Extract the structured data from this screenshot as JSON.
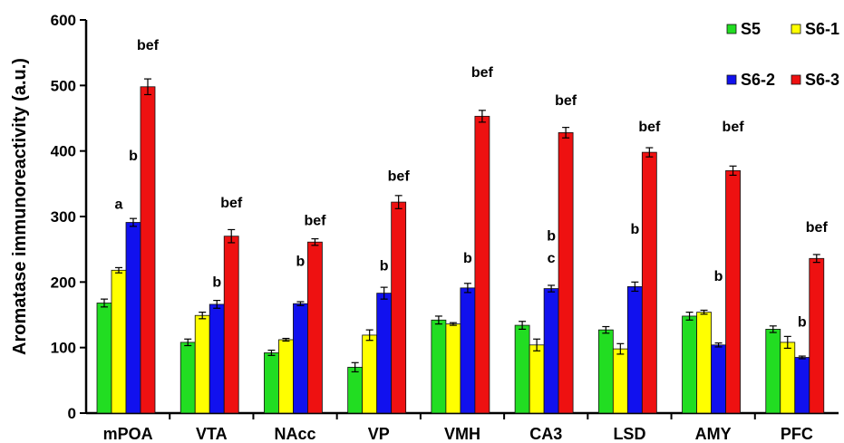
{
  "chart_data": {
    "type": "bar",
    "title": "",
    "xlabel": "",
    "ylabel": "Aromatase immunoreactivity (a.u.)",
    "ylim": [
      0,
      600
    ],
    "yticks": [
      0,
      100,
      200,
      300,
      400,
      500,
      600
    ],
    "grid": false,
    "legend_position": "top-right",
    "categories": [
      "mPOA",
      "VTA",
      "NAcc",
      "VP",
      "VMH",
      "CA3",
      "LSD",
      "AMY",
      "PFC"
    ],
    "series": [
      {
        "name": "S5",
        "color": "#22dd22",
        "values": [
          168,
          108,
          92,
          70,
          142,
          134,
          127,
          148,
          128
        ],
        "errors": [
          6,
          5,
          4,
          7,
          6,
          6,
          5,
          6,
          5
        ]
      },
      {
        "name": "S6-1",
        "color": "#ffff00",
        "values": [
          218,
          149,
          112,
          119,
          136,
          104,
          98,
          154,
          108
        ],
        "errors": [
          4,
          5,
          2,
          8,
          2,
          9,
          8,
          3,
          9
        ]
      },
      {
        "name": "S6-2",
        "color": "#1111ee",
        "values": [
          291,
          166,
          167,
          183,
          191,
          190,
          193,
          104,
          85
        ],
        "errors": [
          6,
          6,
          3,
          9,
          7,
          5,
          7,
          3,
          2
        ]
      },
      {
        "name": "S6-3",
        "color": "#ee1111",
        "values": [
          498,
          270,
          261,
          322,
          453,
          428,
          398,
          370,
          236
        ],
        "errors": [
          12,
          10,
          5,
          10,
          9,
          8,
          7,
          7,
          6
        ]
      }
    ],
    "annotations": [
      {
        "text": "a",
        "category": "mPOA",
        "series": "S6-1",
        "y": 320
      },
      {
        "text": "b",
        "category": "mPOA",
        "series": "S6-2",
        "y": 394
      },
      {
        "text": "bef",
        "category": "mPOA",
        "series": "S6-3",
        "y": 563
      },
      {
        "text": "b",
        "category": "VTA",
        "series": "S6-2",
        "y": 201
      },
      {
        "text": "bef",
        "category": "VTA",
        "series": "S6-3",
        "y": 322
      },
      {
        "text": "b",
        "category": "NAcc",
        "series": "S6-2",
        "y": 233
      },
      {
        "text": "bef",
        "category": "NAcc",
        "series": "S6-3",
        "y": 295
      },
      {
        "text": "b",
        "category": "VP",
        "series": "S6-2",
        "y": 226
      },
      {
        "text": "bef",
        "category": "VP",
        "series": "S6-3",
        "y": 363
      },
      {
        "text": "b",
        "category": "VMH",
        "series": "S6-2",
        "y": 238
      },
      {
        "text": "bef",
        "category": "VMH",
        "series": "S6-3",
        "y": 521
      },
      {
        "text": "b",
        "category": "CA3",
        "series": "S6-2",
        "y": 272
      },
      {
        "text": "c",
        "category": "CA3",
        "series": "S6-2",
        "y": 238
      },
      {
        "text": "bef",
        "category": "CA3",
        "series": "S6-3",
        "y": 478
      },
      {
        "text": "b",
        "category": "LSD",
        "series": "S6-2",
        "y": 282
      },
      {
        "text": "bef",
        "category": "LSD",
        "series": "S6-3",
        "y": 438
      },
      {
        "text": "b",
        "category": "AMY",
        "series": "S6-2",
        "y": 210
      },
      {
        "text": "bef",
        "category": "AMY",
        "series": "S6-3",
        "y": 438
      },
      {
        "text": "b",
        "category": "PFC",
        "series": "S6-2",
        "y": 140
      },
      {
        "text": "bef",
        "category": "PFC",
        "series": "S6-3",
        "y": 285
      }
    ]
  }
}
